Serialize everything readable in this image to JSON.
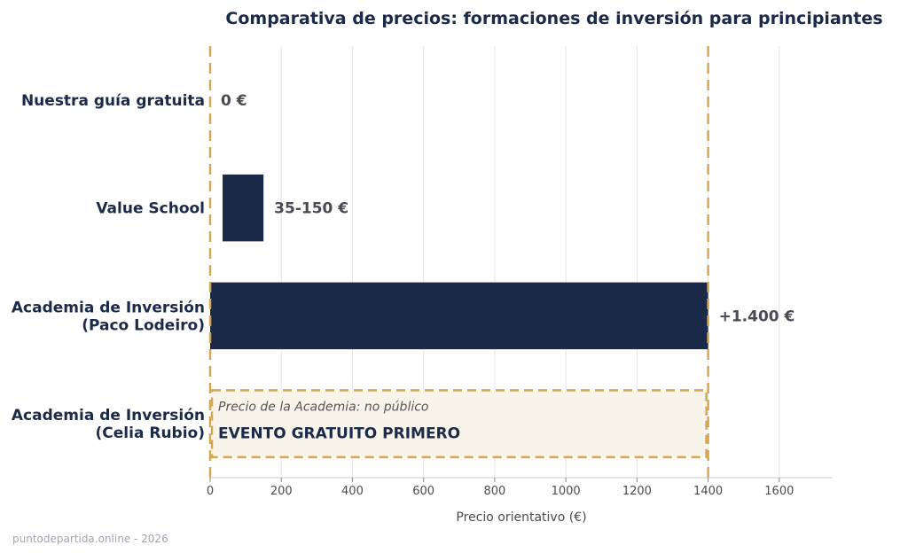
{
  "chart_data": {
    "type": "bar",
    "orientation": "horizontal",
    "title": "Comparativa de precios: formaciones de inversión para principiantes",
    "xlabel": "Precio orientativo (€)",
    "ylabel": "",
    "xlim": [
      0,
      1750
    ],
    "xticks": [
      0,
      200,
      400,
      600,
      800,
      1000,
      1200,
      1400,
      1600
    ],
    "grid": "vertical",
    "categories": [
      [
        "Nuestra guía gratuita"
      ],
      [
        "Value School"
      ],
      [
        "Academia de Inversión",
        "(Paco Lodeiro)"
      ],
      [
        "Academia de Inversión",
        "(Celia Rubio)"
      ]
    ],
    "bars": [
      {
        "start": 0,
        "end": 0,
        "label": "0 €"
      },
      {
        "start": 35,
        "end": 150,
        "label": "35-150 €"
      },
      {
        "start": 0,
        "end": 1400,
        "label": "+1.400 €"
      },
      {
        "start": 0,
        "end": 1400,
        "dashed": true,
        "note": "Precio de la Academia: no público",
        "label": "EVENTO GRATUITO PRIMERO"
      }
    ],
    "reference_lines": [
      0,
      1400
    ],
    "colors": {
      "bar": "#1c2a4a",
      "dash": "#d4a852",
      "note_fill": "#f8f4ea",
      "grid": "#e6e6e6"
    }
  },
  "footer": "puntodepartida.online - 2026"
}
